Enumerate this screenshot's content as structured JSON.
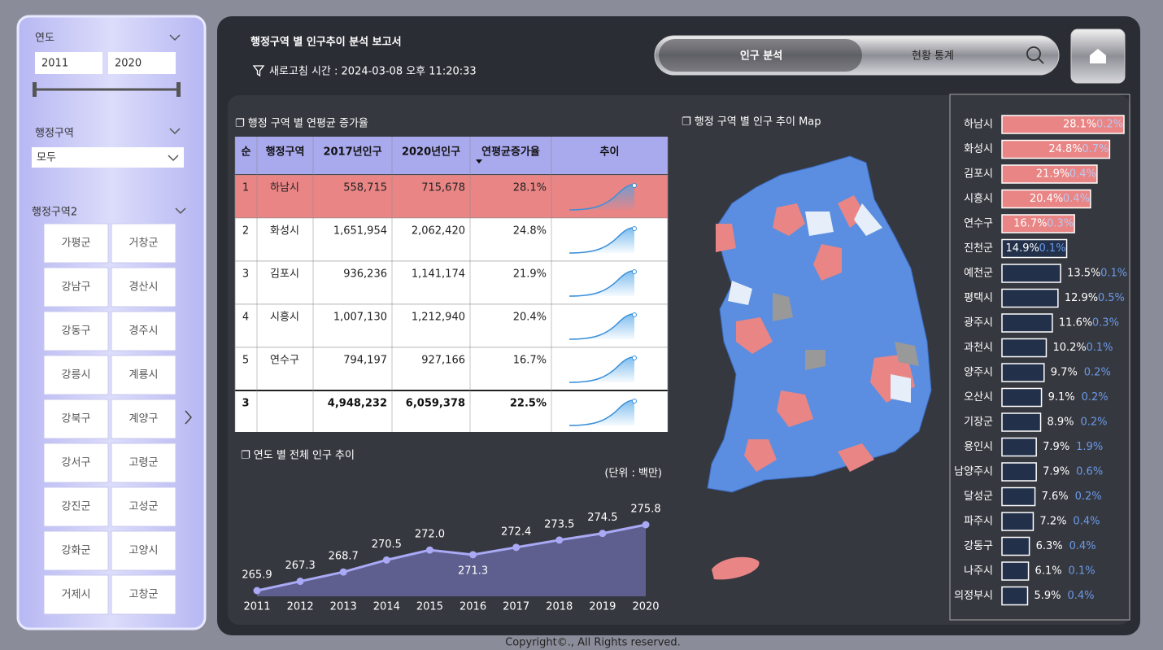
{
  "sidebar": {
    "year_label": "연도",
    "year_from": "2011",
    "year_to": "2020",
    "region_label": "행정구역",
    "region_select": "모두",
    "region2_label": "행정구역2",
    "region2_buttons": [
      "가평군",
      "거창군",
      "강남구",
      "경산시",
      "강동구",
      "경주시",
      "강릉시",
      "계룡시",
      "강북구",
      "계양구",
      "강서구",
      "고령군",
      "강진군",
      "고성군",
      "강화군",
      "고양시",
      "거제시",
      "고창군"
    ]
  },
  "header": {
    "title": "행정구역 별 인구추이 분석 보고서",
    "refresh": "새로고침 시간 : 2024-03-08 오후 11:20:33",
    "tabs": [
      "인구 분석",
      "현황 통계"
    ]
  },
  "table": {
    "title": "❐ 행정 구역 별 연평균 증가율",
    "headers": [
      "순",
      "행정구역",
      "2017년인구",
      "2020년인구",
      "연평균증가율",
      "추이"
    ],
    "rows": [
      [
        "1",
        "하남시",
        "558,715",
        "715,678",
        "28.1%"
      ],
      [
        "2",
        "화성시",
        "1,651,954",
        "2,062,420",
        "24.8%"
      ],
      [
        "3",
        "김포시",
        "936,236",
        "1,141,174",
        "21.9%"
      ],
      [
        "4",
        "시흥시",
        "1,007,130",
        "1,212,940",
        "20.4%"
      ],
      [
        "5",
        "연수구",
        "794,197",
        "927,166",
        "16.7%"
      ]
    ],
    "total": {
      "rank": "3",
      "pop2017": "4,948,232",
      "pop2020": "6,059,378",
      "rate": "22.5%"
    }
  },
  "chart_data": [
    {
      "type": "line",
      "title": "❐ 연도 별 전체 인구 추이",
      "unit": "(단위 : 백만)",
      "color": "#a9a9f5",
      "area_color": "#5f5f8f",
      "categories": [
        "2011",
        "2012",
        "2013",
        "2014",
        "2015",
        "2016",
        "2017",
        "2018",
        "2019",
        "2020"
      ],
      "values": [
        265.9,
        267.3,
        268.7,
        270.5,
        272.0,
        271.3,
        272.4,
        273.5,
        274.5,
        275.8
      ],
      "value_labels": [
        "265.9",
        "267.3",
        "268.7",
        "270.5",
        "272.0",
        "271.3",
        "272.4",
        "273.5",
        "274.5",
        "275.8"
      ]
    },
    {
      "type": "hbar",
      "title": "❐ 행정 구역 별 인구 추이 Map",
      "highlight_color": "#e98585",
      "color": "#22304a",
      "second_color": "#6a9ae8",
      "categories": [
        "하남시",
        "화성시",
        "김포시",
        "시흥시",
        "연수구",
        "진천군",
        "예천군",
        "평택시",
        "광주시",
        "과천시",
        "양주시",
        "오산시",
        "기장군",
        "용인시",
        "남양주시",
        "달성군",
        "파주시",
        "강동구",
        "나주시",
        "의정부시"
      ],
      "series": [
        {
          "values": [
            28.1,
            24.8,
            21.9,
            20.4,
            16.7,
            14.9,
            13.5,
            12.9,
            11.6,
            10.2,
            9.7,
            9.1,
            8.9,
            7.9,
            7.9,
            7.6,
            7.2,
            6.3,
            6.1,
            5.9
          ]
        },
        {
          "values": [
            0.2,
            0.7,
            0.4,
            0.4,
            0.3,
            0.1,
            0.1,
            0.5,
            0.3,
            0.1,
            0.2,
            0.2,
            0.2,
            1.9,
            0.6,
            0.2,
            0.4,
            0.4,
            0.1,
            0.4
          ]
        }
      ]
    }
  ],
  "footer": "Copyright©., All Rights reserved."
}
